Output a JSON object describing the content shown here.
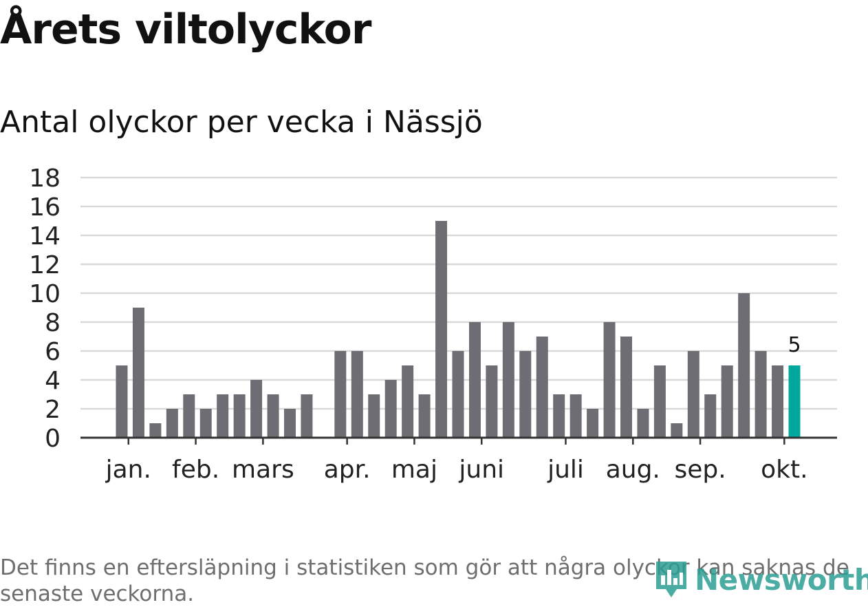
{
  "title": "Årets viltolyckor",
  "subtitle": "Antal olyckor per vecka i Nässjö",
  "note": "Det finns en eftersläpning i statistiken som gör att några olyckor kan saknas de senaste veckorna.",
  "brand": "Newsworthy",
  "colors": {
    "bar": "#6e6d73",
    "highlight": "#00a79d",
    "grid": "#d9d9d9",
    "axis": "#333333",
    "brand": "#2c9e93"
  },
  "chart_data": {
    "type": "bar",
    "title": "Årets viltolyckor",
    "subtitle": "Antal olyckor per vecka i Nässjö",
    "x": [
      1,
      2,
      3,
      4,
      5,
      6,
      7,
      8,
      9,
      10,
      11,
      12,
      13,
      14,
      15,
      16,
      17,
      18,
      19,
      20,
      21,
      22,
      23,
      24,
      25,
      26,
      27,
      28,
      29,
      30,
      31,
      32,
      33,
      34,
      35,
      36,
      37,
      38,
      39,
      40,
      41
    ],
    "values": [
      5,
      9,
      1,
      2,
      3,
      2,
      3,
      3,
      4,
      3,
      2,
      3,
      0,
      6,
      6,
      3,
      4,
      5,
      3,
      15,
      6,
      8,
      5,
      8,
      6,
      7,
      3,
      3,
      2,
      8,
      7,
      2,
      5,
      1,
      6,
      3,
      5,
      10,
      6,
      5,
      5
    ],
    "highlight_index": 40,
    "highlight_label": "5",
    "ylim": [
      0,
      18
    ],
    "yticks": [
      0,
      2,
      4,
      6,
      8,
      10,
      12,
      14,
      16,
      18
    ],
    "month_ticks": [
      {
        "label": "jan.",
        "x": 1.4
      },
      {
        "label": "feb.",
        "x": 5.4
      },
      {
        "label": "mars",
        "x": 9.4
      },
      {
        "label": "apr.",
        "x": 14.4
      },
      {
        "label": "maj",
        "x": 18.4
      },
      {
        "label": "juni",
        "x": 22.4
      },
      {
        "label": "juli",
        "x": 27.4
      },
      {
        "label": "aug.",
        "x": 31.4
      },
      {
        "label": "sep.",
        "x": 35.4
      },
      {
        "label": "okt.",
        "x": 40.4
      }
    ],
    "grid": true,
    "legend": "none"
  }
}
